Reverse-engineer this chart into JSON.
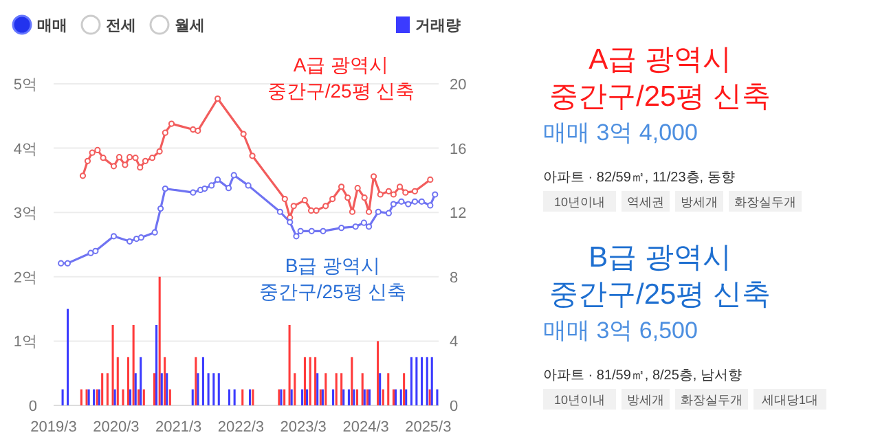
{
  "chart_data": [
    {
      "type": "line",
      "annotations": [
        "매매",
        "전세",
        "월세"
      ],
      "xlim": [
        "2019-03-01",
        "2025-05-01"
      ],
      "xticks": [
        {
          "value": "2019-03",
          "label": "2019/3"
        },
        {
          "value": "2020-03",
          "label": "2020/3"
        },
        {
          "value": "2021-03",
          "label": "2021/3"
        },
        {
          "value": "2022-03",
          "label": "2022/3"
        },
        {
          "value": "2023-03",
          "label": "2023/3"
        },
        {
          "value": "2024-03",
          "label": "2024/3"
        },
        {
          "value": "2025-03",
          "label": "2025/3"
        }
      ],
      "ylim": [
        0,
        5
      ],
      "yticks": [
        0,
        {
          "value": 1,
          "label": "1억"
        },
        {
          "value": 2,
          "label": "2억"
        },
        {
          "value": 3,
          "label": "3억"
        },
        {
          "value": 4,
          "label": "4억"
        },
        {
          "value": 5,
          "label": "5억"
        }
      ],
      "y2lim": [
        0,
        20
      ],
      "y2ticks": [
        0,
        4,
        8,
        12,
        16,
        20
      ],
      "grid": "y",
      "legend": "top right",
      "marker": "circle",
      "series": [
        {
          "type": "line",
          "name": "A급 광역시\n중간구/25평 신축",
          "color": "#f25c5c",
          "x": [
            "2019-08-19",
            "2019-09-16",
            "2019-10-13",
            "2019-11-13",
            "2019-12-16",
            "2020-02-16",
            "2020-03-19",
            "2020-04-22",
            "2020-05-19",
            "2020-06-22",
            "2020-07-19",
            "2020-08-19",
            "2020-09-28",
            "2020-11-10",
            "2020-12-13",
            "2021-01-19",
            "2021-05-25",
            "2021-06-22",
            "2021-10-16",
            "2022-03-16",
            "2022-05-07",
            "2022-11-13",
            "2022-12-13",
            "2023-01-04",
            "2023-03-10",
            "2023-04-16",
            "2023-05-16",
            "2023-07-10",
            "2023-08-19",
            "2023-10-10",
            "2023-11-16",
            "2023-12-13",
            "2024-01-13",
            "2024-02-22",
            "2024-03-19",
            "2024-04-16",
            "2024-05-25",
            "2024-07-13",
            "2024-08-10",
            "2024-09-16",
            "2024-10-19",
            "2024-12-13",
            "2025-03-13"
          ],
          "values": [
            3.57,
            3.8,
            3.93,
            3.97,
            3.85,
            3.72,
            3.86,
            3.74,
            3.86,
            3.85,
            3.7,
            3.8,
            3.85,
            3.95,
            4.24,
            4.38,
            4.29,
            4.27,
            4.77,
            4.22,
            3.88,
            3.21,
            2.92,
            3.1,
            3.19,
            3.03,
            3.03,
            3.1,
            3.21,
            3.4,
            3.23,
            3.01,
            3.38,
            3.23,
            3.01,
            3.56,
            3.28,
            3.33,
            3.28,
            3.4,
            3.31,
            3.33,
            3.51
          ]
        },
        {
          "type": "line",
          "name": "B급 광역시\n중간구/25평 신축",
          "color": "#6f73f2",
          "x": [
            "2019-04-13",
            "2019-05-22",
            "2019-10-04",
            "2019-11-01",
            "2020-02-16",
            "2020-05-19",
            "2020-06-28",
            "2020-07-25",
            "2020-10-13",
            "2020-11-16",
            "2020-12-13",
            "2021-05-25",
            "2021-07-07",
            "2021-08-01",
            "2021-09-10",
            "2021-10-16",
            "2021-12-19",
            "2022-01-19",
            "2022-04-13",
            "2022-10-16",
            "2022-12-13",
            "2023-01-19",
            "2023-02-13",
            "2023-04-19",
            "2023-06-25",
            "2023-10-10",
            "2024-01-01",
            "2024-02-19",
            "2024-03-19",
            "2024-05-13",
            "2024-07-13",
            "2024-08-10",
            "2024-09-25",
            "2024-11-04",
            "2024-12-13",
            "2025-01-22",
            "2025-03-13",
            "2025-04-10"
          ],
          "values": [
            2.21,
            2.21,
            2.37,
            2.4,
            2.63,
            2.55,
            2.59,
            2.61,
            2.69,
            3.06,
            3.37,
            3.31,
            3.35,
            3.37,
            3.42,
            3.51,
            3.38,
            3.58,
            3.42,
            3.01,
            2.85,
            2.63,
            2.71,
            2.71,
            2.71,
            2.76,
            2.78,
            2.84,
            2.78,
            3.01,
            2.99,
            3.13,
            3.17,
            3.13,
            3.17,
            3.17,
            3.11,
            3.28
          ]
        },
        {
          "type": "bar",
          "axis": "y2",
          "color": "#ff3b3b",
          "x": [
            "2019-08",
            "2019-09",
            "2019-11",
            "2019-12",
            "2020-01",
            "2020-02",
            "2020-03",
            "2020-04",
            "2020-05",
            "2020-06",
            "2020-07",
            "2020-08",
            "2020-10",
            "2020-11",
            "2020-12",
            "2021-01",
            "2021-06",
            "2022-03",
            "2022-05",
            "2022-10",
            "2022-11",
            "2022-12",
            "2023-01",
            "2023-03",
            "2023-04",
            "2023-05",
            "2023-06",
            "2023-07",
            "2023-09",
            "2023-10",
            "2023-12",
            "2024-01",
            "2024-02",
            "2024-03",
            "2024-05",
            "2024-06",
            "2024-07",
            "2024-08",
            "2024-10",
            "2025-03"
          ],
          "values": [
            1,
            1,
            1,
            2,
            2,
            5,
            3,
            1,
            3,
            5,
            1,
            1,
            2,
            8,
            3,
            1,
            3,
            1,
            1,
            1,
            1,
            5,
            2,
            3,
            3,
            3,
            1,
            2,
            2,
            2,
            3,
            1,
            2,
            1,
            4,
            1,
            2,
            1,
            2,
            1
          ]
        },
        {
          "type": "bar",
          "axis": "y2",
          "name": "거래량",
          "color": "#3b3bff",
          "x": [
            "2019-04",
            "2019-05",
            "2019-09",
            "2019-10",
            "2019-11",
            "2020-02",
            "2020-05",
            "2020-06",
            "2020-07",
            "2020-10",
            "2020-11",
            "2020-12",
            "2021-05",
            "2021-06",
            "2021-07",
            "2021-08",
            "2021-09",
            "2021-10",
            "2021-12",
            "2022-01",
            "2022-04",
            "2022-10",
            "2022-12",
            "2023-02",
            "2023-03",
            "2023-05",
            "2023-06",
            "2023-08",
            "2023-10",
            "2023-11",
            "2023-12",
            "2024-02",
            "2024-03",
            "2024-05",
            "2024-08",
            "2024-09",
            "2024-10",
            "2024-11",
            "2024-12",
            "2025-01",
            "2025-02",
            "2025-03",
            "2025-04"
          ],
          "values": [
            1,
            6,
            1,
            1,
            1,
            1,
            1,
            2,
            3,
            5,
            2,
            2,
            1,
            2,
            3,
            2,
            2,
            2,
            1,
            1,
            1,
            1,
            1,
            1,
            1,
            2,
            1,
            1,
            1,
            1,
            1,
            1,
            1,
            2,
            1,
            1,
            1,
            3,
            3,
            3,
            3,
            3,
            1
          ]
        }
      ]
    },
    {
      "type": "other",
      "title": "A급 광역시\n중간구/25평 신축",
      "subtitle": "매매 3억 4,000",
      "annotations": [
        "아파트 · 82/59㎡, 11/23층, 동향",
        "10년이내",
        "역세권",
        "방세개",
        "화장실두개"
      ]
    },
    {
      "type": "other",
      "title": "B급 광역시\n중간구/25평 신축",
      "subtitle": "매매 3억 6,500",
      "annotations": [
        "아파트 · 81/59㎡, 8/25층, 남서향",
        "10년이내",
        "방세개",
        "화장실두개",
        "세대당1대"
      ]
    }
  ]
}
